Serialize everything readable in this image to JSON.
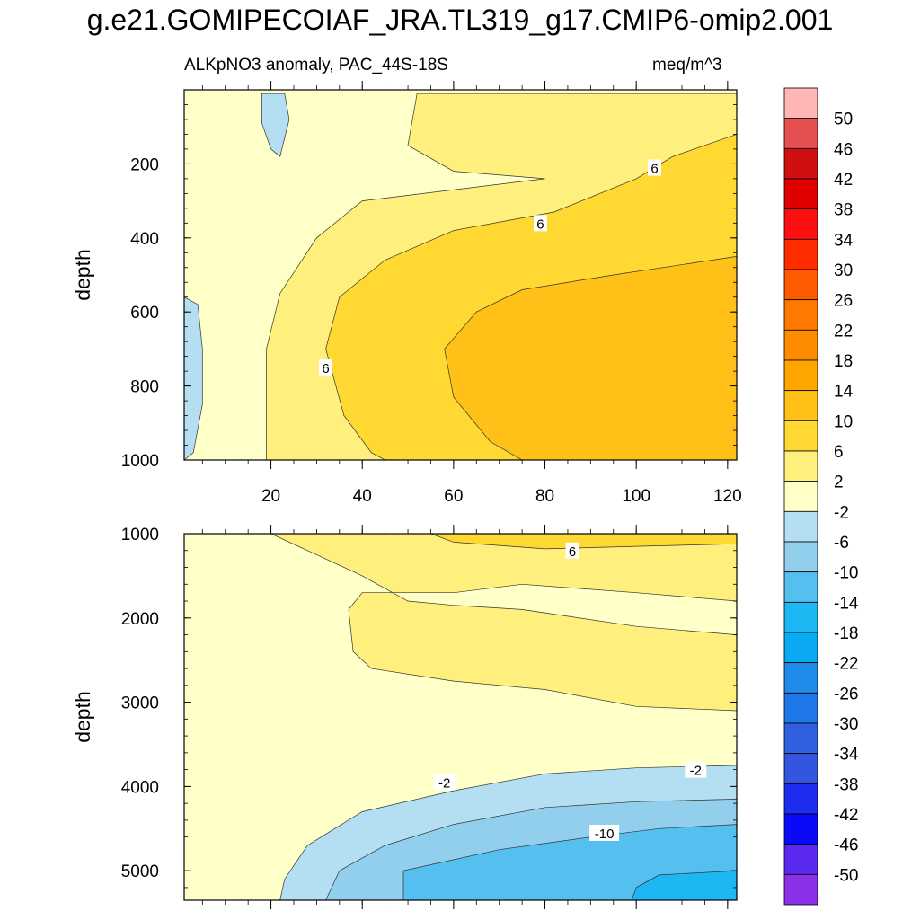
{
  "chart_data": [
    {
      "type": "contour",
      "title": "g.e21.GOMIPECOIAF_JRA.TL319_g17.CMIP6-omip2.001",
      "subtitle_left": "ALKpNO3 anomaly, PAC_44S-18S",
      "subtitle_right": "meq/m^3",
      "panel": "upper",
      "ylabel": "depth",
      "xlabel": "",
      "xlim": [
        1,
        122
      ],
      "ylim": [
        1000,
        0
      ],
      "xticks": [
        20,
        40,
        60,
        80,
        100,
        120
      ],
      "yticks": [
        200,
        400,
        600,
        800,
        1000
      ],
      "contour_labels": [
        {
          "text": "6",
          "x": 104,
          "y": 210
        },
        {
          "text": "6",
          "x": 79,
          "y": 360
        },
        {
          "text": "6",
          "x": 32,
          "y": 750
        }
      ],
      "regions": [
        {
          "level": "-2..2",
          "description": "background"
        },
        {
          "level": "-6..-2",
          "points": [
            [
              1,
              560
            ],
            [
              4,
              580
            ],
            [
              5,
              700
            ],
            [
              5,
              850
            ],
            [
              3,
              980
            ],
            [
              1,
              1000
            ]
          ]
        },
        {
          "level": "-6..-2",
          "points": [
            [
              18,
              10
            ],
            [
              23,
              10
            ],
            [
              24,
              80
            ],
            [
              22,
              180
            ],
            [
              20,
              160
            ],
            [
              18,
              90
            ]
          ]
        },
        {
          "level": "2..6",
          "points": [
            [
              122,
              10
            ],
            [
              52,
              10
            ],
            [
              50,
              150
            ],
            [
              60,
              220
            ],
            [
              80,
              240
            ],
            [
              40,
              300
            ],
            [
              30,
              400
            ],
            [
              22,
              550
            ],
            [
              19,
              700
            ],
            [
              19,
              900
            ],
            [
              19,
              1000
            ],
            [
              122,
              1000
            ]
          ]
        },
        {
          "level": "6..10",
          "points": [
            [
              122,
              120
            ],
            [
              108,
              180
            ],
            [
              100,
              240
            ],
            [
              82,
              330
            ],
            [
              60,
              380
            ],
            [
              45,
              460
            ],
            [
              35,
              560
            ],
            [
              32,
              700
            ],
            [
              36,
              880
            ],
            [
              42,
              980
            ],
            [
              45,
              1000
            ],
            [
              122,
              1000
            ]
          ]
        },
        {
          "level": "10..14",
          "points": [
            [
              122,
              450
            ],
            [
              95,
              500
            ],
            [
              75,
              540
            ],
            [
              65,
              600
            ],
            [
              58,
              700
            ],
            [
              60,
              830
            ],
            [
              68,
              950
            ],
            [
              75,
              1000
            ],
            [
              122,
              1000
            ]
          ]
        }
      ]
    },
    {
      "type": "contour",
      "panel": "lower",
      "ylabel": "depth",
      "xlabel": "",
      "xlim": [
        1,
        122
      ],
      "ylim": [
        5350,
        1000
      ],
      "xticks": [
        20,
        40,
        60,
        80,
        100,
        120
      ],
      "yticks": [
        1000,
        2000,
        3000,
        4000,
        5000
      ],
      "contour_labels": [
        {
          "text": "6",
          "x": 86,
          "y": 1200
        },
        {
          "text": "-2",
          "x": 58,
          "y": 3950
        },
        {
          "text": "-2",
          "x": 113,
          "y": 3800
        },
        {
          "text": "-10",
          "x": 93,
          "y": 4550
        }
      ],
      "regions": [
        {
          "level": "-2..2",
          "description": "background"
        },
        {
          "level": "2..6",
          "points": [
            [
              20,
              1000
            ],
            [
              122,
              1000
            ],
            [
              122,
              1800
            ],
            [
              100,
              1700
            ],
            [
              75,
              1600
            ],
            [
              60,
              1700
            ],
            [
              40,
              1700
            ],
            [
              37,
              1900
            ],
            [
              38,
              2400
            ],
            [
              42,
              2600
            ],
            [
              60,
              2750
            ],
            [
              80,
              2850
            ],
            [
              100,
              3050
            ],
            [
              122,
              3100
            ],
            [
              122,
              2200
            ],
            [
              100,
              2100
            ],
            [
              75,
              1900
            ],
            [
              60,
              1850
            ],
            [
              50,
              1800
            ],
            [
              40,
              1500
            ],
            [
              30,
              1250
            ]
          ]
        },
        {
          "level": "6..10",
          "points": [
            [
              55,
              1000
            ],
            [
              122,
              1000
            ],
            [
              122,
              1120
            ],
            [
              100,
              1150
            ],
            [
              80,
              1180
            ],
            [
              60,
              1100
            ]
          ]
        },
        {
          "level": "-6..-2",
          "points": [
            [
              22,
              5350
            ],
            [
              23,
              5100
            ],
            [
              28,
              4700
            ],
            [
              40,
              4300
            ],
            [
              60,
              4050
            ],
            [
              80,
              3850
            ],
            [
              100,
              3780
            ],
            [
              122,
              3750
            ],
            [
              122,
              5350
            ]
          ]
        },
        {
          "level": "-10..-6",
          "points": [
            [
              32,
              5350
            ],
            [
              35,
              5000
            ],
            [
              45,
              4700
            ],
            [
              60,
              4450
            ],
            [
              80,
              4250
            ],
            [
              100,
              4180
            ],
            [
              122,
              4150
            ],
            [
              122,
              5350
            ]
          ]
        },
        {
          "level": "-14..-10",
          "points": [
            [
              49,
              5350
            ],
            [
              49,
              5000
            ],
            [
              70,
              4750
            ],
            [
              90,
              4600
            ],
            [
              105,
              4500
            ],
            [
              122,
              4450
            ],
            [
              122,
              5350
            ]
          ]
        },
        {
          "level": "-18..-14",
          "points": [
            [
              99,
              5350
            ],
            [
              100,
              5200
            ],
            [
              105,
              5050
            ],
            [
              122,
              5000
            ],
            [
              122,
              5350
            ]
          ]
        }
      ]
    }
  ],
  "colorbar": {
    "labels": [
      "50",
      "46",
      "42",
      "38",
      "34",
      "30",
      "26",
      "22",
      "18",
      "14",
      "10",
      "6",
      "2",
      "-2",
      "-6",
      "-10",
      "-14",
      "-18",
      "-22",
      "-26",
      "-30",
      "-34",
      "-38",
      "-42",
      "-46",
      "-50"
    ],
    "colors": [
      "#FFB6B6",
      "#E65050",
      "#D01010",
      "#E00000",
      "#FF1010",
      "#FF2C00",
      "#FF5A00",
      "#FF7800",
      "#FF8C00",
      "#FFA500",
      "#FFC118",
      "#FFD931",
      "#FFF07D",
      "#FFFFC8",
      "#B4DFF2",
      "#92CFEC",
      "#55C0EF",
      "#1DB7F3",
      "#0AAAF2",
      "#208BE8",
      "#1E78EA",
      "#3060E0",
      "#3455E0",
      "#1E2CF0",
      "#0A0AF8",
      "#5A2AF0",
      "#8A30E8"
    ]
  }
}
